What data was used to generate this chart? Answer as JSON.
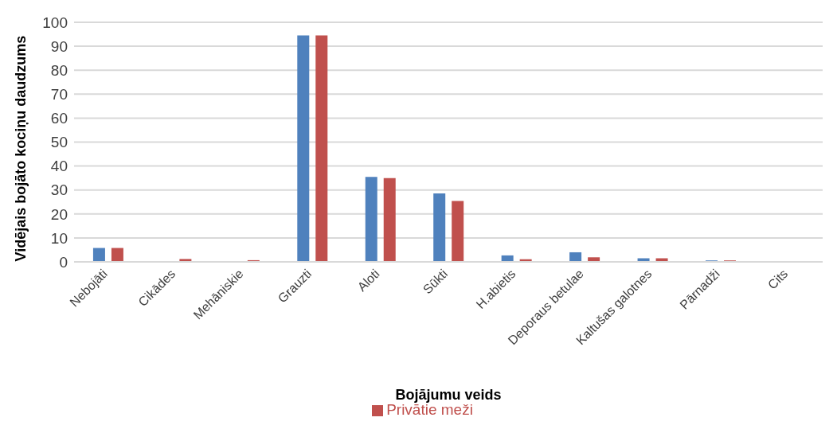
{
  "chart_data": {
    "type": "bar",
    "xlabel": "Bojājumu veids",
    "ylabel": "Vidējais bojāto kociņu daudzums",
    "categories": [
      "Nebojāti",
      "Cikādes",
      "Mehāniskie",
      "Grauzti",
      "Aloti",
      "Sūkti",
      "H.abietis",
      "Deporaus betulae",
      "Kaltušas galotnes",
      "Pārnadži",
      "Cits"
    ],
    "series": [
      {
        "color": "#4f81bd",
        "values": [
          5.8,
          0,
          0,
          94.5,
          35.5,
          28.6,
          2.7,
          4,
          1.5,
          0.6,
          0
        ]
      },
      {
        "name": "Privātie meži",
        "color": "#c0504d",
        "values": [
          5.8,
          1.2,
          0.7,
          94.5,
          35,
          25.4,
          1.1,
          1.9,
          1.5,
          0.6,
          0
        ]
      }
    ],
    "ylim": [
      0,
      100
    ],
    "yticks": [
      0,
      10,
      20,
      30,
      40,
      50,
      60,
      70,
      80,
      90,
      100
    ],
    "grid": "y",
    "legend": "bottom"
  }
}
